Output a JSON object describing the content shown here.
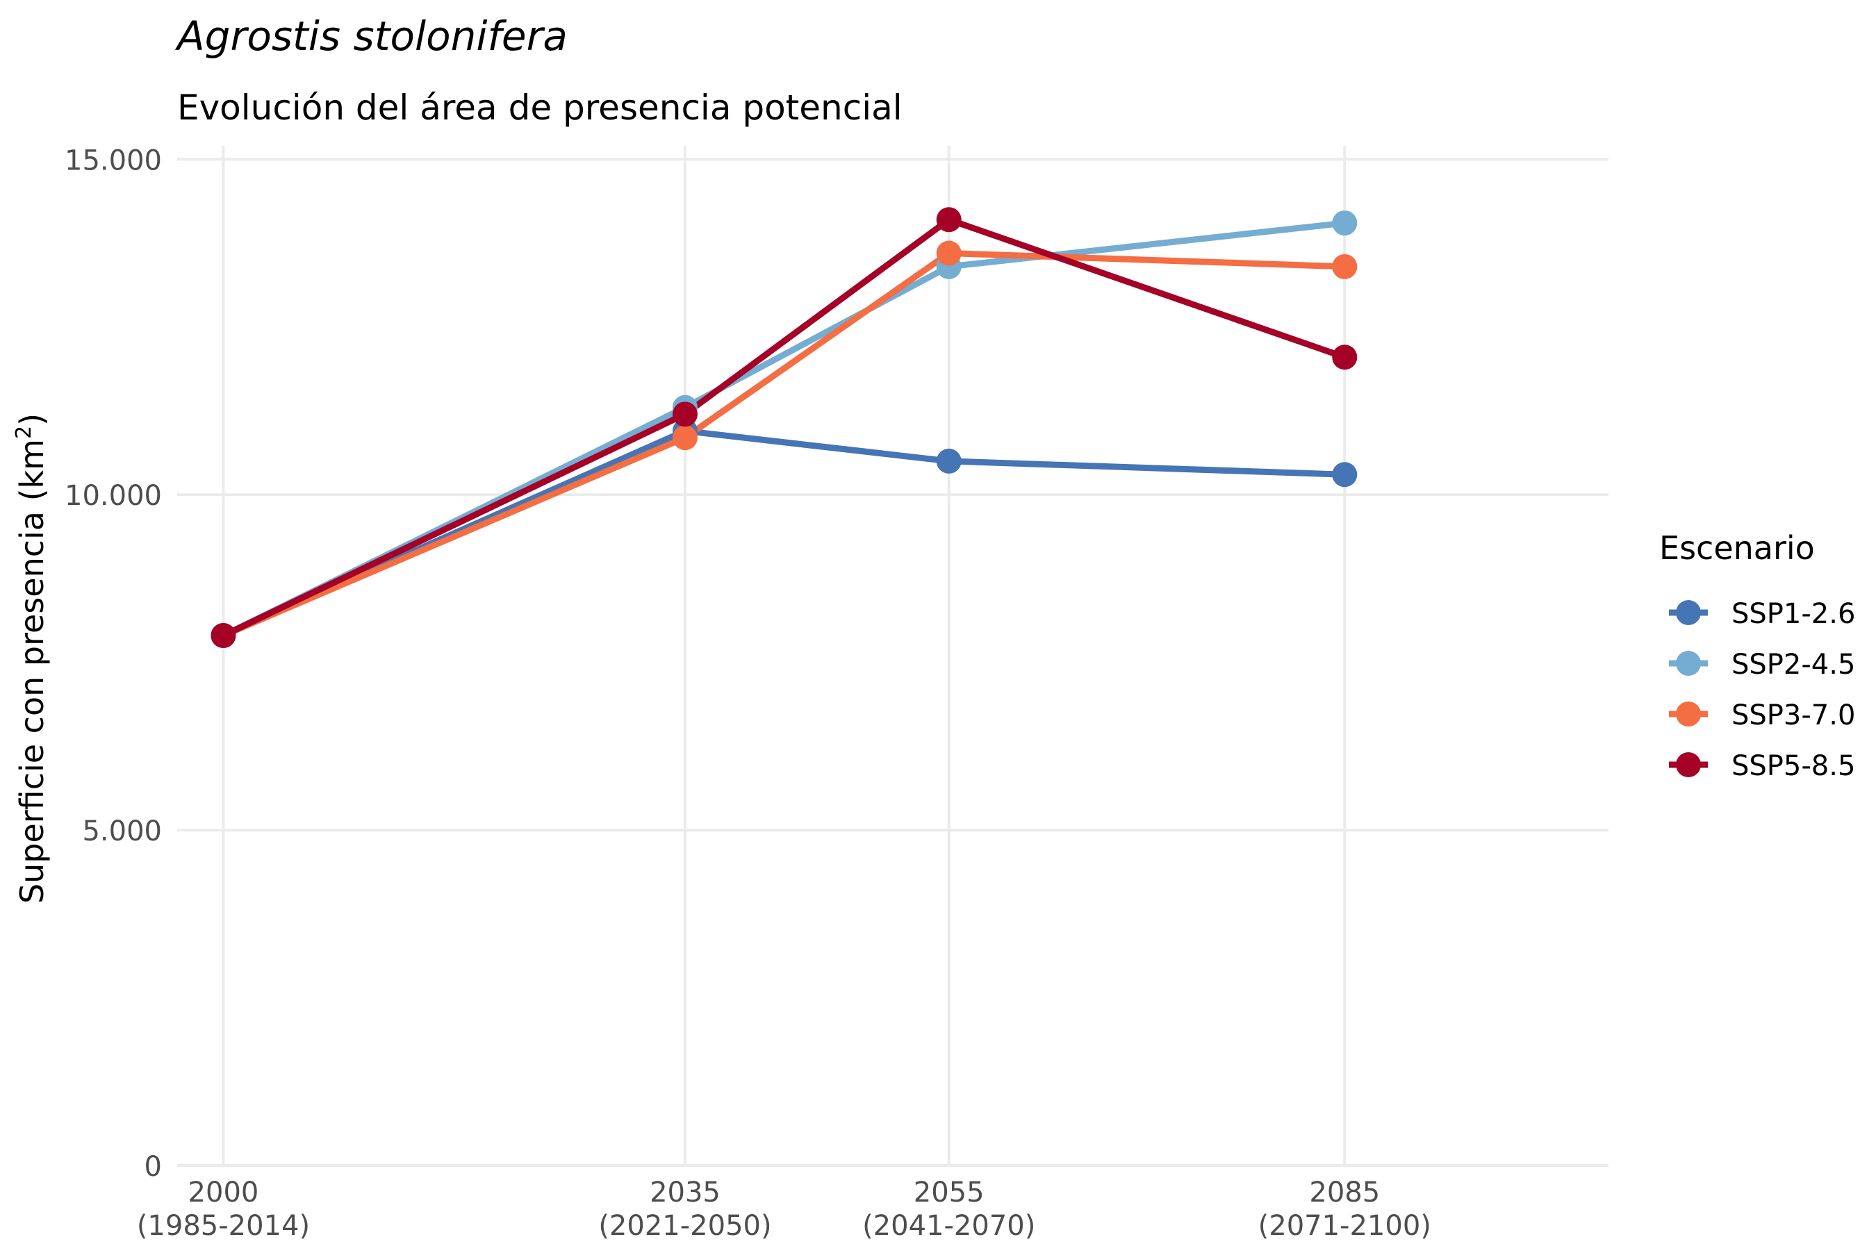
{
  "chart_data": {
    "type": "line",
    "title": "Agrostis stolonifera",
    "subtitle": "Evolución del área de presencia potencial",
    "ylabel": "Superficie con presencia (km",
    "ylabel_sup": "2",
    "ylabel_close": ")",
    "xlabel": "",
    "x": [
      2000,
      2035,
      2055,
      2085
    ],
    "x_tick_labels": [
      [
        "2000",
        "(1985-2014)"
      ],
      [
        "2035",
        "(2021-2050)"
      ],
      [
        "2055",
        "(2041-2070)"
      ],
      [
        "2085",
        "(2071-2100)"
      ]
    ],
    "y_ticks": [
      0,
      5000,
      10000,
      15000
    ],
    "y_tick_labels": [
      "0",
      "5.000",
      "10.000",
      "15.000"
    ],
    "xlim": [
      1996.5,
      2105
    ],
    "ylim": [
      0,
      15200
    ],
    "grid": true,
    "legend_title": "Escenario",
    "legend_position": "right",
    "series": [
      {
        "name": "SSP1-2.6",
        "color": "#4575b4",
        "values": [
          7900,
          10950,
          10500,
          10300
        ]
      },
      {
        "name": "SSP2-4.5",
        "color": "#74add1",
        "values": [
          7900,
          11300,
          13400,
          14050
        ]
      },
      {
        "name": "SSP3-7.0",
        "color": "#f46d43",
        "values": [
          7900,
          10850,
          13600,
          13400
        ]
      },
      {
        "name": "SSP5-8.5",
        "color": "#a50026",
        "values": [
          7900,
          11200,
          14100,
          12050
        ]
      }
    ]
  }
}
